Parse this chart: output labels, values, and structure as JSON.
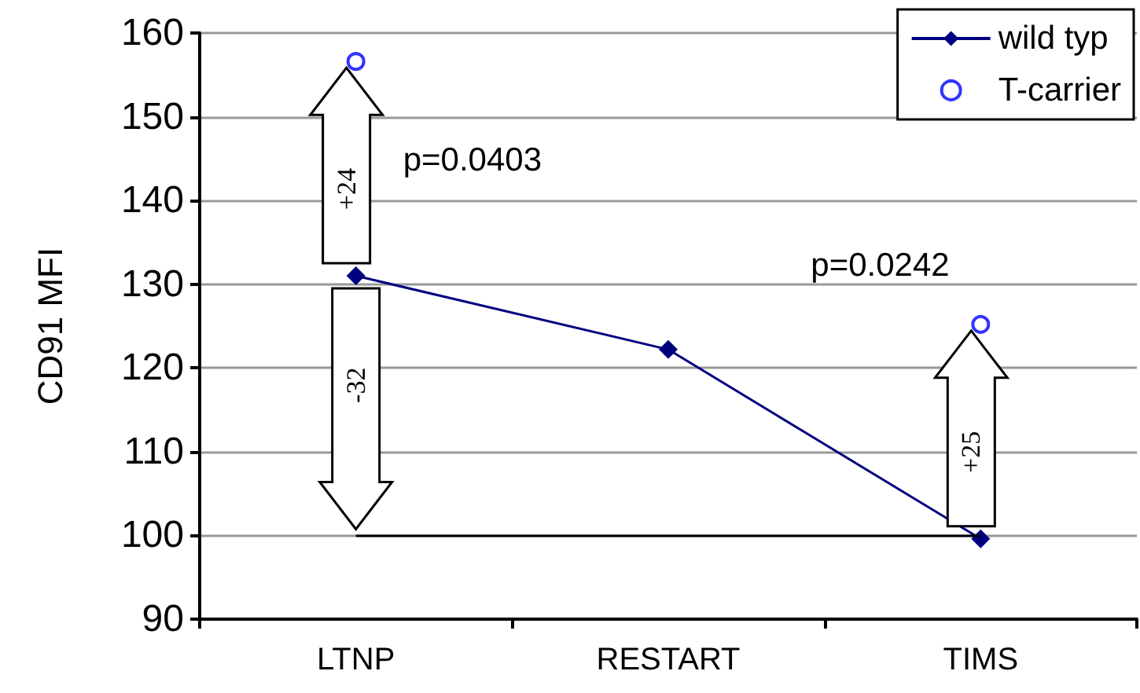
{
  "chart_data": {
    "type": "line",
    "ylabel": "CD91 MFI",
    "categories": [
      "LTNP",
      "RESTART",
      "TIMS"
    ],
    "series": [
      {
        "name": "wild typ",
        "color": "#000080",
        "values": [
          131,
          122.2,
          99.6
        ],
        "marker": "diamond"
      },
      {
        "name": "T-carrier",
        "type": "scatter",
        "color": "#0000ff",
        "values": [
          156.6,
          null,
          125.2
        ],
        "marker": "circle"
      }
    ],
    "ylim": [
      90,
      160
    ],
    "yticks": [
      90,
      100,
      110,
      120,
      130,
      140,
      150,
      160
    ],
    "grid": "y",
    "legend": "top right",
    "ref_lines": [
      {
        "axis": "y",
        "value": 100,
        "color": "#000000"
      }
    ],
    "annotations": [
      "+24",
      "-32",
      "+25",
      "p=0.0403",
      "p=0.0242"
    ]
  }
}
